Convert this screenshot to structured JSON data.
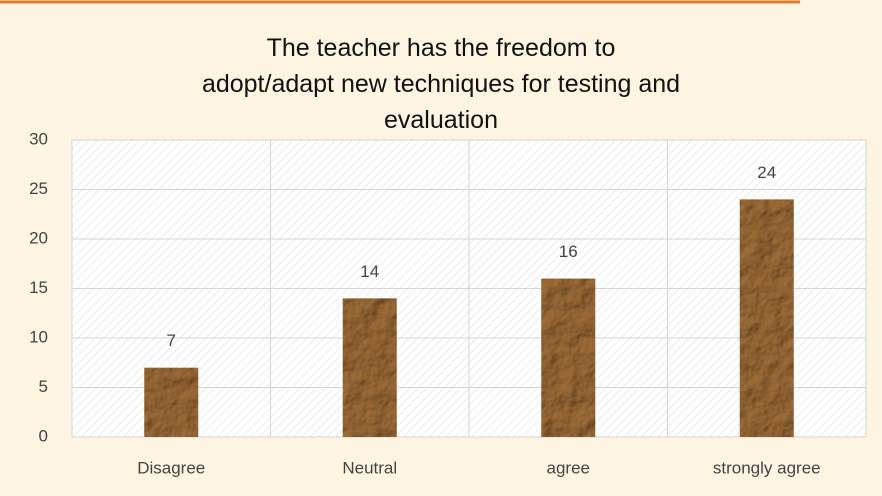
{
  "chart_data": {
    "type": "bar",
    "title": "The teacher has the freedom to adopt/adapt new techniques for testing and evaluation",
    "categories": [
      "Disagree",
      "Neutral",
      "agree",
      "strongly agree"
    ],
    "values": [
      7,
      14,
      16,
      24
    ],
    "color": "#b08d62",
    "ylim": [
      0,
      30
    ],
    "yticks": [
      0,
      5,
      10,
      15,
      20,
      25,
      30
    ],
    "grid": true
  }
}
